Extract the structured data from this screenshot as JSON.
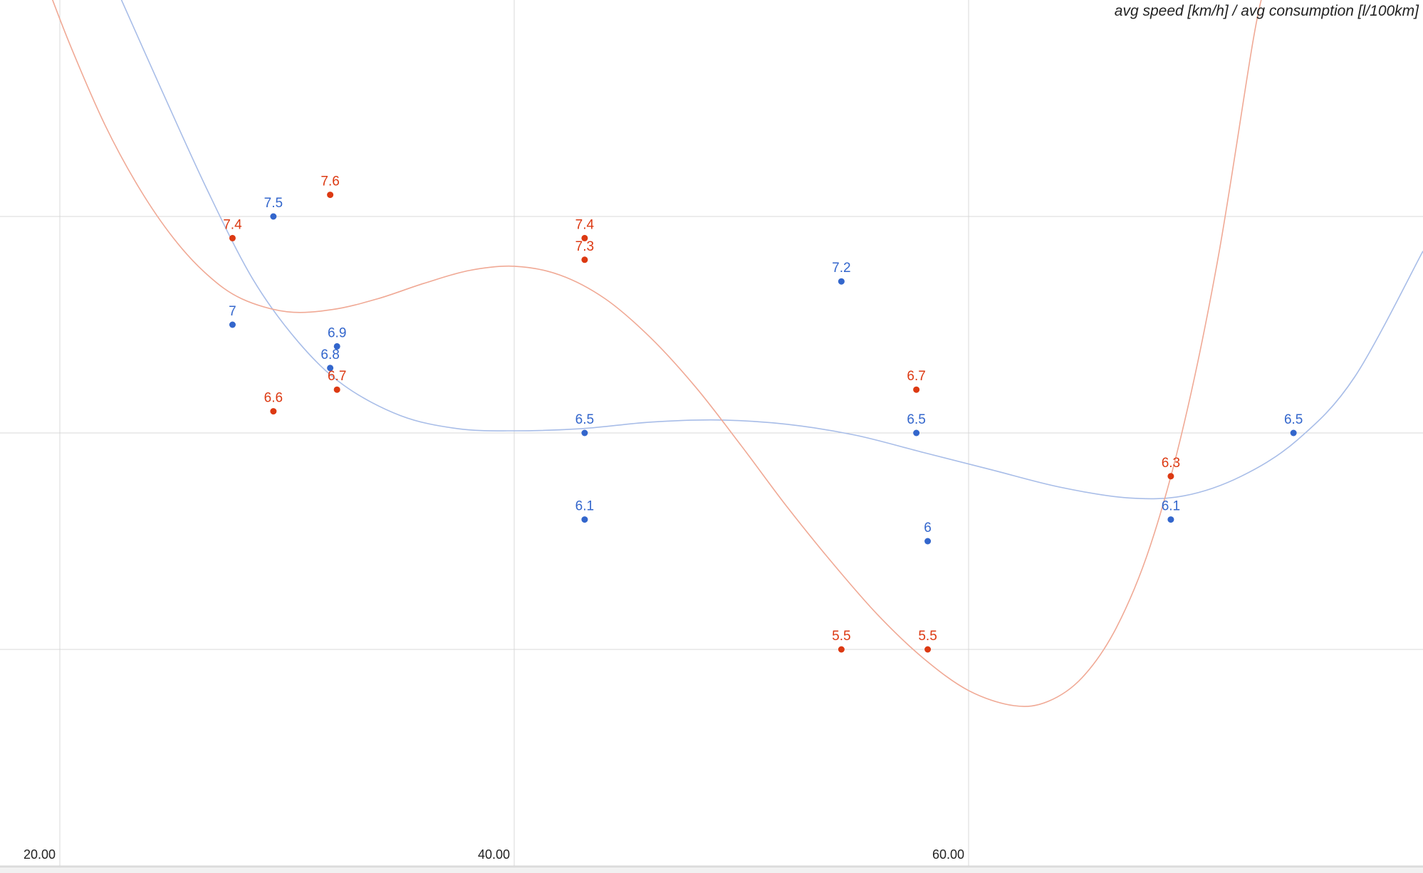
{
  "chart_data": {
    "type": "scatter",
    "title": "avg speed [km/h] / avg consumption [l/100km]",
    "xlabel": "",
    "ylabel": "",
    "xlim": [
      20,
      80
    ],
    "ylim": [
      4.5,
      8.5
    ],
    "x_ticks": [
      {
        "value": 20,
        "label": "20.00"
      },
      {
        "value": 40,
        "label": "40.00"
      },
      {
        "value": 60,
        "label": "60.00"
      }
    ],
    "y_gridlines": [
      5.5,
      6.5,
      7.5
    ],
    "grid": true,
    "legend": "none",
    "series": [
      {
        "color": "#3366cc",
        "trend_color": "#a8bde8",
        "trendline": "polynomial",
        "points": [
          {
            "x": 27.6,
            "y": 7.0,
            "label": "7"
          },
          {
            "x": 29.4,
            "y": 7.5,
            "label": "7.5"
          },
          {
            "x": 31.9,
            "y": 6.8,
            "label": "6.8"
          },
          {
            "x": 32.2,
            "y": 6.9,
            "label": "6.9"
          },
          {
            "x": 43.1,
            "y": 6.5,
            "label": "6.5"
          },
          {
            "x": 43.1,
            "y": 6.1,
            "label": "6.1"
          },
          {
            "x": 54.4,
            "y": 7.2,
            "label": "7.2"
          },
          {
            "x": 57.7,
            "y": 6.5,
            "label": "6.5"
          },
          {
            "x": 58.2,
            "y": 6.0,
            "label": "6"
          },
          {
            "x": 68.9,
            "y": 6.1,
            "label": "6.1"
          },
          {
            "x": 74.3,
            "y": 6.5,
            "label": "6.5"
          }
        ],
        "trend_points": [
          [
            22.5,
            8.55
          ],
          [
            24.5,
            8.08
          ],
          [
            26.5,
            7.62
          ],
          [
            28.5,
            7.21
          ],
          [
            30.5,
            6.92
          ],
          [
            32.5,
            6.72
          ],
          [
            35.0,
            6.58
          ],
          [
            37.5,
            6.52
          ],
          [
            40.0,
            6.51
          ],
          [
            43.0,
            6.52
          ],
          [
            46.0,
            6.55
          ],
          [
            49.0,
            6.56
          ],
          [
            52.0,
            6.54
          ],
          [
            55.0,
            6.49
          ],
          [
            58.0,
            6.41
          ],
          [
            61.0,
            6.33
          ],
          [
            64.0,
            6.25
          ],
          [
            67.0,
            6.2
          ],
          [
            69.5,
            6.21
          ],
          [
            72.0,
            6.3
          ],
          [
            74.5,
            6.47
          ],
          [
            77.0,
            6.76
          ],
          [
            80.0,
            7.34
          ]
        ]
      },
      {
        "color": "#dc3912",
        "trend_color": "#f0a995",
        "trendline": "polynomial",
        "points": [
          {
            "x": 27.6,
            "y": 7.4,
            "label": "7.4"
          },
          {
            "x": 29.4,
            "y": 6.6,
            "label": "6.6"
          },
          {
            "x": 31.9,
            "y": 7.6,
            "label": "7.6"
          },
          {
            "x": 32.2,
            "y": 6.7,
            "label": "6.7"
          },
          {
            "x": 43.1,
            "y": 7.4,
            "label": "7.4"
          },
          {
            "x": 43.1,
            "y": 7.3,
            "label": "7.3"
          },
          {
            "x": 54.4,
            "y": 5.5,
            "label": "5.5"
          },
          {
            "x": 57.7,
            "y": 6.7,
            "label": "6.7"
          },
          {
            "x": 58.2,
            "y": 5.5,
            "label": "5.5"
          },
          {
            "x": 68.9,
            "y": 6.3,
            "label": "6.3"
          }
        ],
        "trend_points": [
          [
            19.5,
            8.55
          ],
          [
            20.5,
            8.28
          ],
          [
            22.0,
            7.92
          ],
          [
            23.5,
            7.63
          ],
          [
            25.0,
            7.4
          ],
          [
            26.5,
            7.23
          ],
          [
            28.0,
            7.12
          ],
          [
            30.0,
            7.06
          ],
          [
            32.0,
            7.07
          ],
          [
            34.0,
            7.12
          ],
          [
            36.0,
            7.19
          ],
          [
            38.0,
            7.25
          ],
          [
            40.0,
            7.27
          ],
          [
            42.0,
            7.23
          ],
          [
            44.0,
            7.12
          ],
          [
            46.0,
            6.94
          ],
          [
            48.0,
            6.71
          ],
          [
            50.0,
            6.44
          ],
          [
            52.0,
            6.16
          ],
          [
            54.0,
            5.9
          ],
          [
            56.0,
            5.66
          ],
          [
            58.0,
            5.46
          ],
          [
            60.0,
            5.31
          ],
          [
            62.0,
            5.24
          ],
          [
            63.5,
            5.26
          ],
          [
            65.0,
            5.37
          ],
          [
            66.5,
            5.6
          ],
          [
            68.0,
            5.98
          ],
          [
            69.5,
            6.55
          ],
          [
            71.0,
            7.32
          ],
          [
            72.5,
            8.3
          ],
          [
            73.0,
            8.55
          ]
        ]
      }
    ]
  }
}
